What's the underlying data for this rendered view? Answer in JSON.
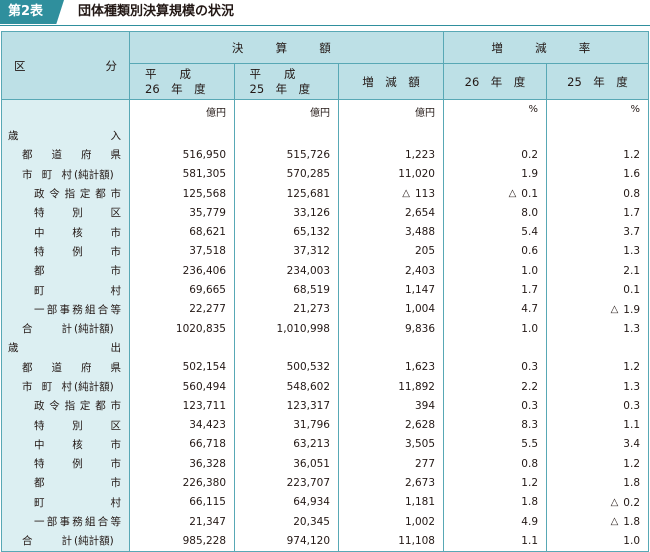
{
  "header": {
    "badge": "第2表",
    "title": "団体種類別決算規模の状況"
  },
  "table": {
    "col_kubun_left": "区",
    "col_kubun_right": "分",
    "group_kessan": "決　算　額",
    "group_zogenritsu": "増　減　率",
    "h_h26_top": "平　　成",
    "h_h26_bottom": "26　年　度",
    "h_h25_top": "平　　成",
    "h_h25_bottom": "25　年　度",
    "h_zogengaku": "増　減　額",
    "h_r26": "26　年　度",
    "h_r25": "25　年　度",
    "unit_oku": "億円",
    "unit_pct": "%",
    "neg_mark": "△",
    "sections": [
      {
        "label": "歳　入",
        "rows": [
          {
            "label": "都道府県",
            "v26": "516,950",
            "v25": "515,726",
            "diff": "1,223",
            "r26": "0.2",
            "r25": "1.2"
          },
          {
            "label": "市町村(純計額)",
            "v26": "581,305",
            "v25": "570,285",
            "diff": "11,020",
            "r26": "1.9",
            "r25": "1.6"
          },
          {
            "label": "政令指定都市",
            "v26": "125,568",
            "v25": "125,681",
            "diff": "113",
            "diff_neg": true,
            "r26": "0.1",
            "r26_neg": true,
            "r25": "0.8"
          },
          {
            "label": "特別区",
            "v26": "35,779",
            "v25": "33,126",
            "diff": "2,654",
            "r26": "8.0",
            "r25": "1.7"
          },
          {
            "label": "中核市",
            "v26": "68,621",
            "v25": "65,132",
            "diff": "3,488",
            "r26": "5.4",
            "r25": "3.7"
          },
          {
            "label": "特例市",
            "v26": "37,518",
            "v25": "37,312",
            "diff": "205",
            "r26": "0.6",
            "r25": "1.3"
          },
          {
            "label": "都市",
            "v26": "236,406",
            "v25": "234,003",
            "diff": "2,403",
            "r26": "1.0",
            "r25": "2.1"
          },
          {
            "label": "町村",
            "v26": "69,665",
            "v25": "68,519",
            "diff": "1,147",
            "r26": "1.7",
            "r25": "0.1"
          },
          {
            "label": "一部事務組合等",
            "v26": "22,277",
            "v25": "21,273",
            "diff": "1,004",
            "r26": "4.7",
            "r25": "1.9",
            "r25_neg": true
          },
          {
            "label": "合計(純計額)",
            "v26": "1020,835",
            "v25": "1,010,998",
            "diff": "9,836",
            "r26": "1.0",
            "r25": "1.3"
          }
        ]
      },
      {
        "label": "歳　出",
        "rows": [
          {
            "label": "都道府県",
            "v26": "502,154",
            "v25": "500,532",
            "diff": "1,623",
            "r26": "0.3",
            "r25": "1.2"
          },
          {
            "label": "市町村(純計額)",
            "v26": "560,494",
            "v25": "548,602",
            "diff": "11,892",
            "r26": "2.2",
            "r25": "1.3"
          },
          {
            "label": "政令指定都市",
            "v26": "123,711",
            "v25": "123,317",
            "diff": "394",
            "r26": "0.3",
            "r25": "0.3"
          },
          {
            "label": "特別区",
            "v26": "34,423",
            "v25": "31,796",
            "diff": "2,628",
            "r26": "8.3",
            "r25": "1.1"
          },
          {
            "label": "中核市",
            "v26": "66,718",
            "v25": "63,213",
            "diff": "3,505",
            "r26": "5.5",
            "r25": "3.4"
          },
          {
            "label": "特例市",
            "v26": "36,328",
            "v25": "36,051",
            "diff": "277",
            "r26": "0.8",
            "r25": "1.2"
          },
          {
            "label": "都市",
            "v26": "226,380",
            "v25": "223,707",
            "diff": "2,673",
            "r26": "1.2",
            "r25": "1.8"
          },
          {
            "label": "町村",
            "v26": "66,115",
            "v25": "64,934",
            "diff": "1,181",
            "r26": "1.8",
            "r25": "0.2",
            "r25_neg": true
          },
          {
            "label": "一部事務組合等",
            "v26": "21,347",
            "v25": "20,345",
            "diff": "1,002",
            "r26": "4.9",
            "r25": "1.8",
            "r25_neg": true
          },
          {
            "label": "合計(純計額)",
            "v26": "985,228",
            "v25": "974,120",
            "diff": "11,108",
            "r26": "1.1",
            "r25": "1.0"
          }
        ]
      }
    ]
  }
}
